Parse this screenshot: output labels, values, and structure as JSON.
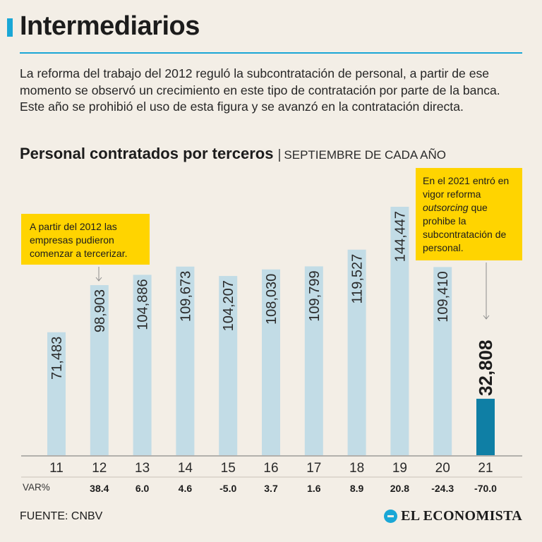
{
  "header": {
    "title": "Intermediarios",
    "intro": "La reforma del trabajo del 2012 reguló la subcontratación de personal, a partir de ese momento se observó un crecimiento en este tipo de contratación por parte de la banca. Este año se prohibió el uso de esta figura y se avanzó en la contratación directa."
  },
  "chart_title": {
    "main": "Personal contratados por terceros",
    "separator": "|",
    "subtitle": "SEPTIEMBRE DE CADA AÑO"
  },
  "callouts": {
    "left": "A partir del 2012 las empresas pudieron comenzar a tercerizar.",
    "right_before": "En el 2021 entró en vigor reforma ",
    "right_italic": "outsorcing",
    "right_after": " que prohibe la subcontratación de personal."
  },
  "var_label": "VAR%",
  "source": "FUENTE: CNBV",
  "brand": "EL ECONOMISTA",
  "colors": {
    "bar": "#c2dce6",
    "bar_highlight": "#0f7fa5",
    "accent": "#1aa7d6",
    "callout": "#ffd400"
  },
  "chart_data": {
    "type": "bar",
    "title": "Personal contratados por terceros",
    "subtitle": "SEPTIEMBRE DE CADA AÑO",
    "categories": [
      "11",
      "12",
      "13",
      "14",
      "15",
      "16",
      "17",
      "18",
      "19",
      "20",
      "21"
    ],
    "values": [
      71483,
      98903,
      104886,
      109673,
      104207,
      108030,
      109799,
      119527,
      144447,
      109410,
      32808
    ],
    "labels": [
      "71,483",
      "98,903",
      "104,886",
      "109,673",
      "104,207",
      "108,030",
      "109,799",
      "119,527",
      "144,447",
      "109,410",
      "32,808"
    ],
    "variation": [
      "",
      "38.4",
      "6.0",
      "4.6",
      "-5.0",
      "3.7",
      "1.6",
      "8.9",
      "20.8",
      "-24.3",
      "-70.0"
    ],
    "highlight_index": 10,
    "ylim": [
      0,
      150000
    ],
    "xlabel": "",
    "ylabel": ""
  }
}
